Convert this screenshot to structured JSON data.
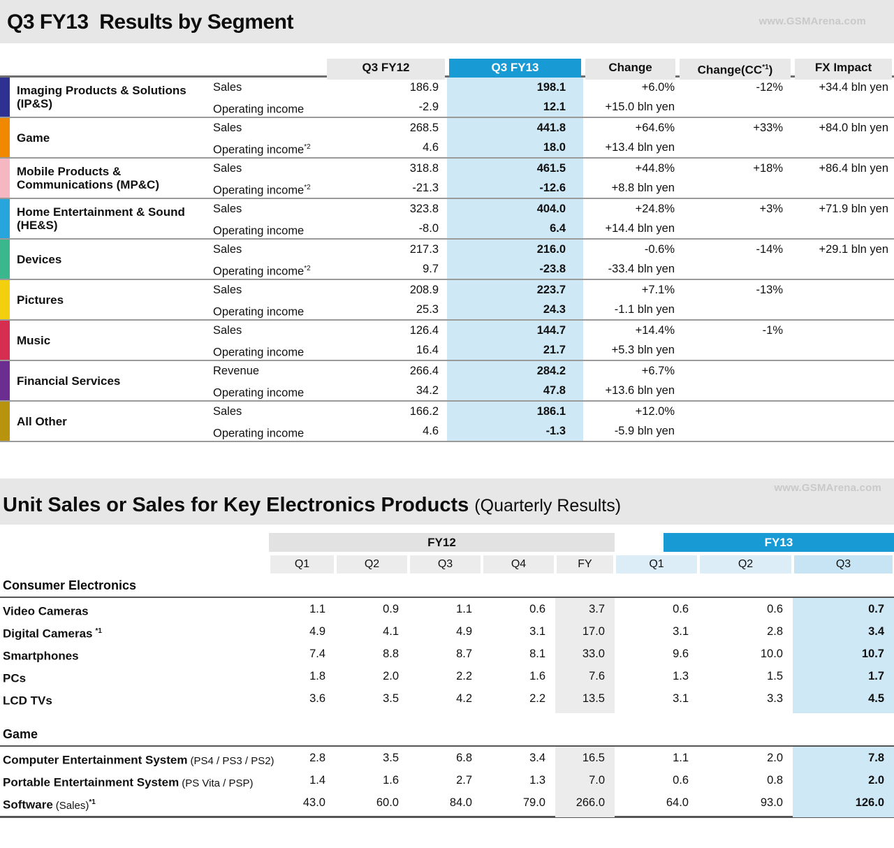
{
  "watermark": "www.GSMArena.com",
  "segment_table": {
    "title": "Q3 FY13  Results by Segment",
    "headers": {
      "fy12": "Q3 FY12",
      "fy13": "Q3 FY13",
      "change": "Change",
      "cc_pre": "Change(CC",
      "cc_sup": "*1",
      "cc_post": ")",
      "fx": "FX Impact"
    },
    "accent_blue": "#189ad5",
    "accent_blue_light": "#cfe8f6",
    "rows": [
      {
        "segment": "Imaging Products & Solutions (IP&S)",
        "color": "#2f3192",
        "line1": {
          "metric": "Sales",
          "fy12": "186.9",
          "fy13": "198.1",
          "change": "+6.0%",
          "cc": "-12%",
          "fx": "+34.4 bln yen"
        },
        "line2": {
          "metric": "Operating income",
          "sup": "",
          "fy12": "-2.9",
          "fy13": "12.1",
          "change": "+15.0 bln yen"
        }
      },
      {
        "segment": "Game",
        "color": "#f08900",
        "line1": {
          "metric": "Sales",
          "fy12": "268.5",
          "fy13": "441.8",
          "change": "+64.6%",
          "cc": "+33%",
          "fx": "+84.0 bln yen"
        },
        "line2": {
          "metric": "Operating income",
          "sup": "*2",
          "fy12": "4.6",
          "fy13": "18.0",
          "change": "+13.4 bln yen"
        }
      },
      {
        "segment": "Mobile Products & Communications (MP&C)",
        "color": "#f5b8c2",
        "line1": {
          "metric": "Sales",
          "fy12": "318.8",
          "fy13": "461.5",
          "change": "+44.8%",
          "cc": "+18%",
          "fx": "+86.4 bln yen"
        },
        "line2": {
          "metric": "Operating income",
          "sup": "*2",
          "fy12": "-21.3",
          "fy13": "-12.6",
          "change": "+8.8 bln yen"
        }
      },
      {
        "segment": "Home Entertainment & Sound (HE&S)",
        "color": "#27a5dd",
        "line1": {
          "metric": "Sales",
          "fy12": "323.8",
          "fy13": "404.0",
          "change": "+24.8%",
          "cc": "+3%",
          "fx": "+71.9 bln yen"
        },
        "line2": {
          "metric": "Operating income",
          "sup": "",
          "fy12": "-8.0",
          "fy13": "6.4",
          "change": "+14.4 bln yen"
        }
      },
      {
        "segment": "Devices",
        "color": "#3ab78d",
        "line1": {
          "metric": "Sales",
          "fy12": "217.3",
          "fy13": "216.0",
          "change": "-0.6%",
          "cc": "-14%",
          "fx": "+29.1 bln yen"
        },
        "line2": {
          "metric": "Operating income",
          "sup": "*2",
          "fy12": "9.7",
          "fy13": "-23.8",
          "change": "-33.4 bln yen"
        }
      },
      {
        "segment": "Pictures",
        "color": "#f2d00e",
        "line1": {
          "metric": "Sales",
          "fy12": "208.9",
          "fy13": "223.7",
          "change": "+7.1%",
          "cc": "-13%",
          "fx": ""
        },
        "line2": {
          "metric": "Operating income",
          "sup": "",
          "fy12": "25.3",
          "fy13": "24.3",
          "change": "-1.1 bln yen"
        }
      },
      {
        "segment": "Music",
        "color": "#d62e50",
        "line1": {
          "metric": "Sales",
          "fy12": "126.4",
          "fy13": "144.7",
          "change": "+14.4%",
          "cc": "-1%",
          "fx": ""
        },
        "line2": {
          "metric": "Operating income",
          "sup": "",
          "fy12": "16.4",
          "fy13": "21.7",
          "change": "+5.3 bln yen"
        }
      },
      {
        "segment": "Financial Services",
        "color": "#6b2d8f",
        "line1": {
          "metric": "Revenue",
          "fy12": "266.4",
          "fy13": "284.2",
          "change": "+6.7%",
          "cc": "",
          "fx": ""
        },
        "line2": {
          "metric": "Operating income",
          "sup": "",
          "fy12": "34.2",
          "fy13": "47.8",
          "change": "+13.6 bln yen"
        }
      },
      {
        "segment": "All Other",
        "color": "#b7930e",
        "line1": {
          "metric": "Sales",
          "fy12": "166.2",
          "fy13": "186.1",
          "change": "+12.0%",
          "cc": "",
          "fx": ""
        },
        "line2": {
          "metric": "Operating income",
          "sup": "",
          "fy12": "4.6",
          "fy13": "-1.3",
          "change": "-5.9 bln yen"
        }
      }
    ]
  },
  "unit_table": {
    "title": "Unit Sales or Sales for Key Electronics Products",
    "subtitle": "(Quarterly Results)",
    "band_fy12": "FY12",
    "band_fy13": "FY13",
    "subheaders": [
      "Q1",
      "Q2",
      "Q3",
      "Q4",
      "FY",
      "Q1",
      "Q2",
      "Q3"
    ],
    "sections": [
      {
        "name": "Consumer Electronics",
        "rows": [
          {
            "label": "Video Cameras",
            "paren": "",
            "sup": "",
            "values": [
              "1.1",
              "0.9",
              "1.1",
              "0.6",
              "3.7",
              "0.6",
              "0.6",
              "0.7"
            ]
          },
          {
            "label": "Digital Cameras",
            "paren": "",
            "sup": "*1",
            "values": [
              "4.9",
              "4.1",
              "4.9",
              "3.1",
              "17.0",
              "3.1",
              "2.8",
              "3.4"
            ]
          },
          {
            "label": "Smartphones",
            "paren": "",
            "sup": "",
            "values": [
              "7.4",
              "8.8",
              "8.7",
              "8.1",
              "33.0",
              "9.6",
              "10.0",
              "10.7"
            ]
          },
          {
            "label": "PCs",
            "paren": "",
            "sup": "",
            "values": [
              "1.8",
              "2.0",
              "2.2",
              "1.6",
              "7.6",
              "1.3",
              "1.5",
              "1.7"
            ]
          },
          {
            "label": "LCD TVs",
            "paren": "",
            "sup": "",
            "values": [
              "3.6",
              "3.5",
              "4.2",
              "2.2",
              "13.5",
              "3.1",
              "3.3",
              "4.5"
            ]
          }
        ]
      },
      {
        "name": "Game",
        "rows": [
          {
            "label": "Computer Entertainment System",
            "paren": "(PS4 / PS3 / PS2)",
            "sup": "",
            "values": [
              "2.8",
              "3.5",
              "6.8",
              "3.4",
              "16.5",
              "1.1",
              "2.0",
              "7.8"
            ]
          },
          {
            "label": "Portable Entertainment System",
            "paren": "(PS Vita / PSP)",
            "sup": "",
            "values": [
              "1.4",
              "1.6",
              "2.7",
              "1.3",
              "7.0",
              "0.6",
              "0.8",
              "2.0"
            ]
          },
          {
            "label": "Software",
            "paren": "(Sales)",
            "sup": "*1",
            "values": [
              "43.0",
              "60.0",
              "84.0",
              "79.0",
              "266.0",
              "64.0",
              "93.0",
              "126.0"
            ]
          }
        ]
      }
    ]
  }
}
